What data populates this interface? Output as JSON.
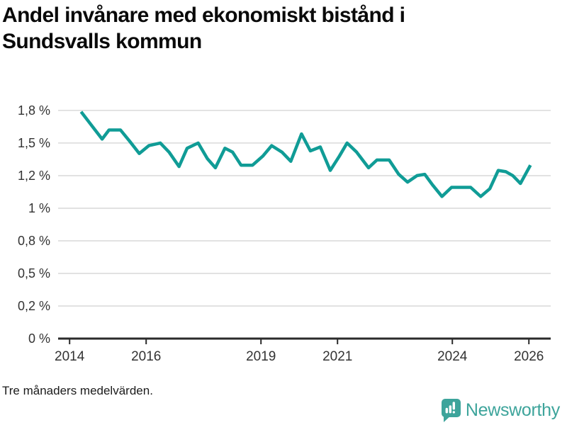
{
  "header": {
    "title": "Andel invånare med ekonomiskt bistånd i Sundsvalls kommun",
    "title_lines": [
      "Andel invånare med ekonomiskt bistånd i",
      "Sundsvalls kommun"
    ]
  },
  "footer": {
    "note": "Tre månaders medelvärden.",
    "brand_name": "Newsworthy"
  },
  "colors": {
    "line": "#109c96",
    "brand_teal": "#3da49b",
    "grid": "#d9d9d9",
    "axis": "#2b2b2b",
    "tick_text": "#333333",
    "title_text": "#0a0a0a"
  },
  "chart_data": {
    "type": "line",
    "title": "Andel invånare med ekonomiskt bistånd i Sundsvalls kommun",
    "note": "Tre månaders medelvärden.",
    "unit": "%",
    "legend": "none",
    "grid": "horizontal gridlines on",
    "xlim": [
      2013.7,
      2026.57
    ],
    "ylim": [
      0,
      1.88
    ],
    "y_ticks": [
      {
        "value": 0,
        "label": "0 %"
      },
      {
        "value": 0.25,
        "label": "0,2 %"
      },
      {
        "value": 0.5,
        "label": "0,5 %"
      },
      {
        "value": 0.75,
        "label": "0,8 %"
      },
      {
        "value": 1,
        "label": "1 %"
      },
      {
        "value": 1.25,
        "label": "1,2 %"
      },
      {
        "value": 1.5,
        "label": "1,5 %"
      },
      {
        "value": 1.75,
        "label": "1,8 %"
      }
    ],
    "x_ticks": [
      {
        "value": 2014,
        "label": "2014"
      },
      {
        "value": 2016,
        "label": "2016"
      },
      {
        "value": 2019,
        "label": "2019"
      },
      {
        "value": 2021,
        "label": "2021"
      },
      {
        "value": 2024,
        "label": "2024"
      },
      {
        "value": 2026,
        "label": "2026"
      }
    ],
    "series": [
      {
        "points": [
          [
            2014.3,
            1.74
          ],
          [
            2014.85,
            1.53
          ],
          [
            2015.03,
            1.6
          ],
          [
            2015.33,
            1.6
          ],
          [
            2015.58,
            1.51
          ],
          [
            2015.82,
            1.42
          ],
          [
            2016.07,
            1.48
          ],
          [
            2016.37,
            1.5
          ],
          [
            2016.6,
            1.43
          ],
          [
            2016.86,
            1.32
          ],
          [
            2017.07,
            1.46
          ],
          [
            2017.36,
            1.5
          ],
          [
            2017.6,
            1.38
          ],
          [
            2017.81,
            1.31
          ],
          [
            2018.06,
            1.46
          ],
          [
            2018.26,
            1.43
          ],
          [
            2018.48,
            1.33
          ],
          [
            2018.78,
            1.33
          ],
          [
            2019.05,
            1.4
          ],
          [
            2019.28,
            1.48
          ],
          [
            2019.55,
            1.43
          ],
          [
            2019.78,
            1.36
          ],
          [
            2020.06,
            1.57
          ],
          [
            2020.29,
            1.44
          ],
          [
            2020.55,
            1.47
          ],
          [
            2020.81,
            1.29
          ],
          [
            2021.05,
            1.4
          ],
          [
            2021.25,
            1.5
          ],
          [
            2021.5,
            1.43
          ],
          [
            2021.81,
            1.31
          ],
          [
            2022.03,
            1.37
          ],
          [
            2022.35,
            1.37
          ],
          [
            2022.6,
            1.26
          ],
          [
            2022.83,
            1.2
          ],
          [
            2023.08,
            1.25
          ],
          [
            2023.28,
            1.26
          ],
          [
            2023.48,
            1.18
          ],
          [
            2023.73,
            1.09
          ],
          [
            2023.98,
            1.16
          ],
          [
            2024.48,
            1.16
          ],
          [
            2024.74,
            1.09
          ],
          [
            2024.98,
            1.15
          ],
          [
            2025.2,
            1.29
          ],
          [
            2025.4,
            1.28
          ],
          [
            2025.58,
            1.25
          ],
          [
            2025.78,
            1.19
          ],
          [
            2026.04,
            1.33
          ]
        ]
      }
    ]
  }
}
